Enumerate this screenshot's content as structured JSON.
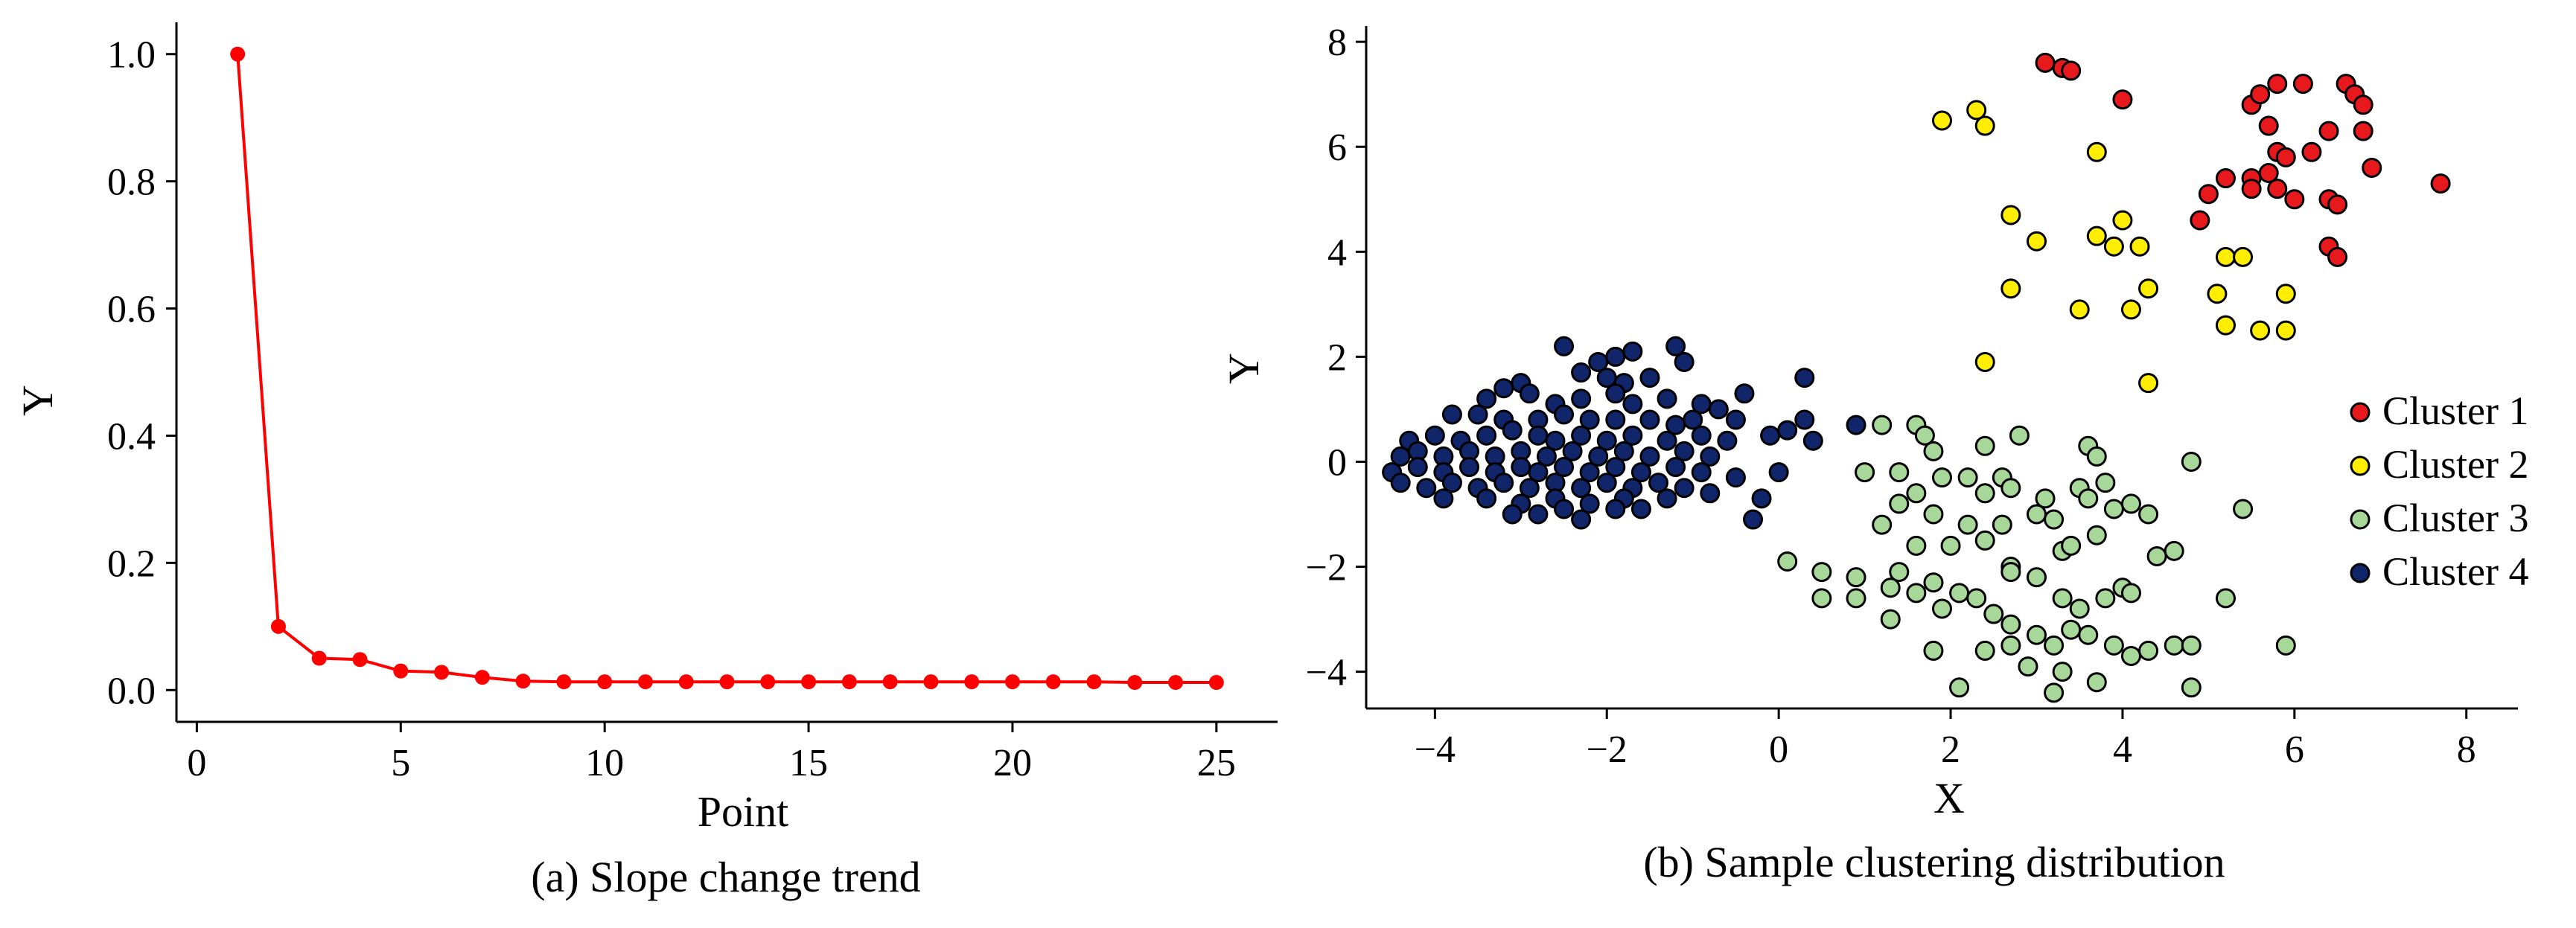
{
  "chart_data": [
    {
      "type": "line",
      "caption": "(a) Slope change trend",
      "xlabel": "Point",
      "ylabel": "Y",
      "xlim": [
        -0.5,
        26.5
      ],
      "ylim": [
        -0.05,
        1.05
      ],
      "xticks": [
        0,
        5,
        10,
        15,
        20,
        25
      ],
      "xtick_labels": [
        "0",
        "5",
        "10",
        "15",
        "20",
        "25"
      ],
      "yticks": [
        0.0,
        0.2,
        0.4,
        0.6,
        0.8,
        1.0
      ],
      "ytick_labels": [
        "0.0",
        "0.2",
        "0.4",
        "0.6",
        "0.8",
        "1.0"
      ],
      "grid": false,
      "color": "#ff0000",
      "x": [
        1,
        2,
        3,
        4,
        5,
        6,
        7,
        8,
        9,
        10,
        11,
        12,
        13,
        14,
        15,
        16,
        17,
        18,
        19,
        20,
        21,
        22,
        23,
        24,
        25
      ],
      "y": [
        1.0,
        0.1,
        0.05,
        0.048,
        0.03,
        0.028,
        0.02,
        0.014,
        0.013,
        0.013,
        0.013,
        0.013,
        0.013,
        0.013,
        0.013,
        0.013,
        0.013,
        0.013,
        0.013,
        0.013,
        0.013,
        0.013,
        0.012,
        0.012,
        0.012
      ]
    },
    {
      "type": "scatter",
      "caption": "(b) Sample clustering distribution",
      "xlabel": "X",
      "ylabel": "Y",
      "xlim": [
        -4.8,
        8.6
      ],
      "ylim": [
        -4.7,
        8.3
      ],
      "xticks": [
        -4,
        -2,
        0,
        2,
        4,
        6,
        8
      ],
      "xtick_labels": [
        "−4",
        "−2",
        "0",
        "2",
        "4",
        "6",
        "8"
      ],
      "yticks": [
        -4,
        -2,
        0,
        2,
        4,
        6,
        8
      ],
      "ytick_labels": [
        "−4",
        "−2",
        "0",
        "2",
        "4",
        "6",
        "8"
      ],
      "grid": false,
      "legend_position": "right",
      "series": [
        {
          "name": "Cluster 1",
          "color": "#e8191c",
          "points": [
            [
              3.1,
              7.6
            ],
            [
              3.3,
              7.5
            ],
            [
              3.4,
              7.45
            ],
            [
              4.0,
              6.9
            ],
            [
              5.5,
              6.8
            ],
            [
              5.6,
              7.0
            ],
            [
              5.8,
              7.2
            ],
            [
              6.1,
              7.2
            ],
            [
              6.6,
              7.2
            ],
            [
              6.7,
              7.0
            ],
            [
              6.8,
              6.8
            ],
            [
              5.7,
              6.4
            ],
            [
              6.4,
              6.3
            ],
            [
              6.8,
              6.3
            ],
            [
              5.8,
              5.9
            ],
            [
              5.9,
              5.8
            ],
            [
              6.2,
              5.9
            ],
            [
              6.9,
              5.6
            ],
            [
              5.2,
              5.4
            ],
            [
              5.5,
              5.4
            ],
            [
              5.7,
              5.5
            ],
            [
              5.5,
              5.2
            ],
            [
              5.8,
              5.2
            ],
            [
              5.0,
              5.1
            ],
            [
              6.0,
              5.0
            ],
            [
              6.4,
              5.0
            ],
            [
              6.5,
              4.9
            ],
            [
              4.9,
              4.6
            ],
            [
              6.4,
              4.1
            ],
            [
              6.5,
              3.9
            ],
            [
              7.7,
              5.3
            ]
          ]
        },
        {
          "name": "Cluster 2",
          "color": "#ffee00",
          "points": [
            [
              1.9,
              6.5
            ],
            [
              2.3,
              6.7
            ],
            [
              2.4,
              6.4
            ],
            [
              3.7,
              5.9
            ],
            [
              2.7,
              4.7
            ],
            [
              3.0,
              4.2
            ],
            [
              3.7,
              4.3
            ],
            [
              3.9,
              4.1
            ],
            [
              4.0,
              4.6
            ],
            [
              4.2,
              4.1
            ],
            [
              5.2,
              3.9
            ],
            [
              5.4,
              3.9
            ],
            [
              4.3,
              3.3
            ],
            [
              2.7,
              3.3
            ],
            [
              3.5,
              2.9
            ],
            [
              4.1,
              2.9
            ],
            [
              5.2,
              2.6
            ],
            [
              5.6,
              2.5
            ],
            [
              5.9,
              2.5
            ],
            [
              5.9,
              3.2
            ],
            [
              5.1,
              3.2
            ],
            [
              2.4,
              1.9
            ],
            [
              4.3,
              1.5
            ]
          ]
        },
        {
          "name": "Cluster 3",
          "color": "#a8d79a",
          "points": [
            [
              1.2,
              0.7
            ],
            [
              1.6,
              0.7
            ],
            [
              1.7,
              0.5
            ],
            [
              2.4,
              0.3
            ],
            [
              2.8,
              0.5
            ],
            [
              3.6,
              0.3
            ],
            [
              3.7,
              0.1
            ],
            [
              4.8,
              0.0
            ],
            [
              1.8,
              0.2
            ],
            [
              1.4,
              -0.2
            ],
            [
              1.9,
              -0.3
            ],
            [
              2.2,
              -0.3
            ],
            [
              2.6,
              -0.3
            ],
            [
              2.7,
              -0.5
            ],
            [
              3.1,
              -0.7
            ],
            [
              3.5,
              -0.5
            ],
            [
              3.8,
              -0.4
            ],
            [
              1.6,
              -0.6
            ],
            [
              1.0,
              -0.2
            ],
            [
              2.4,
              -0.6
            ],
            [
              3.0,
              -1.0
            ],
            [
              3.6,
              -0.7
            ],
            [
              3.9,
              -0.9
            ],
            [
              4.1,
              -0.8
            ],
            [
              1.4,
              -0.8
            ],
            [
              1.8,
              -1.0
            ],
            [
              2.2,
              -1.2
            ],
            [
              2.6,
              -1.2
            ],
            [
              3.2,
              -1.1
            ],
            [
              3.7,
              -1.4
            ],
            [
              4.3,
              -1.0
            ],
            [
              4.4,
              -1.8
            ],
            [
              4.6,
              -1.7
            ],
            [
              5.4,
              -0.9
            ],
            [
              1.2,
              -1.2
            ],
            [
              1.6,
              -1.6
            ],
            [
              2.0,
              -1.6
            ],
            [
              2.4,
              -1.5
            ],
            [
              2.7,
              -2.0
            ],
            [
              3.3,
              -1.7
            ],
            [
              3.4,
              -1.6
            ],
            [
              0.1,
              -1.9
            ],
            [
              0.5,
              -2.1
            ],
            [
              0.9,
              -2.2
            ],
            [
              1.4,
              -2.1
            ],
            [
              1.8,
              -2.3
            ],
            [
              2.1,
              -2.5
            ],
            [
              2.7,
              -2.1
            ],
            [
              3.0,
              -2.2
            ],
            [
              3.3,
              -2.6
            ],
            [
              3.5,
              -2.8
            ],
            [
              3.8,
              -2.6
            ],
            [
              4.0,
              -2.4
            ],
            [
              4.1,
              -2.5
            ],
            [
              5.2,
              -2.6
            ],
            [
              0.5,
              -2.6
            ],
            [
              0.9,
              -2.6
            ],
            [
              1.3,
              -2.4
            ],
            [
              1.6,
              -2.5
            ],
            [
              1.9,
              -2.8
            ],
            [
              2.3,
              -2.6
            ],
            [
              2.5,
              -2.9
            ],
            [
              2.7,
              -3.1
            ],
            [
              3.0,
              -3.3
            ],
            [
              3.2,
              -3.5
            ],
            [
              3.4,
              -3.2
            ],
            [
              3.6,
              -3.3
            ],
            [
              3.9,
              -3.5
            ],
            [
              4.1,
              -3.7
            ],
            [
              4.3,
              -3.6
            ],
            [
              4.6,
              -3.5
            ],
            [
              4.8,
              -3.5
            ],
            [
              5.9,
              -3.5
            ],
            [
              1.3,
              -3.0
            ],
            [
              1.8,
              -3.6
            ],
            [
              2.4,
              -3.6
            ],
            [
              2.7,
              -3.5
            ],
            [
              2.9,
              -3.9
            ],
            [
              3.3,
              -4.0
            ],
            [
              3.7,
              -4.2
            ],
            [
              4.8,
              -4.3
            ],
            [
              2.1,
              -4.3
            ],
            [
              3.2,
              -4.4
            ]
          ]
        },
        {
          "name": "Cluster 4",
          "color": "#10256a",
          "points": [
            [
              -2.5,
              2.2
            ],
            [
              -2.1,
              1.9
            ],
            [
              -1.9,
              2.0
            ],
            [
              -1.7,
              2.1
            ],
            [
              -1.2,
              2.2
            ],
            [
              -1.1,
              1.9
            ],
            [
              -2.3,
              1.7
            ],
            [
              -2.0,
              1.6
            ],
            [
              -1.8,
              1.5
            ],
            [
              -1.5,
              1.6
            ],
            [
              -3.0,
              1.5
            ],
            [
              -3.2,
              1.4
            ],
            [
              -2.9,
              1.3
            ],
            [
              -3.4,
              1.2
            ],
            [
              -2.6,
              1.1
            ],
            [
              -2.3,
              1.2
            ],
            [
              -1.9,
              1.3
            ],
            [
              -1.7,
              1.1
            ],
            [
              -1.3,
              1.2
            ],
            [
              -0.9,
              1.1
            ],
            [
              -0.7,
              1.0
            ],
            [
              -0.4,
              1.3
            ],
            [
              0.3,
              1.6
            ],
            [
              -3.8,
              0.9
            ],
            [
              -3.5,
              0.9
            ],
            [
              -3.2,
              0.8
            ],
            [
              -2.8,
              0.8
            ],
            [
              -2.5,
              0.9
            ],
            [
              -2.2,
              0.8
            ],
            [
              -1.9,
              0.8
            ],
            [
              -1.5,
              0.8
            ],
            [
              -1.2,
              0.7
            ],
            [
              -1.0,
              0.8
            ],
            [
              -0.5,
              0.8
            ],
            [
              -0.1,
              0.5
            ],
            [
              0.1,
              0.6
            ],
            [
              0.3,
              0.8
            ],
            [
              0.9,
              0.7
            ],
            [
              -4.3,
              0.4
            ],
            [
              -4.0,
              0.5
            ],
            [
              -3.7,
              0.4
            ],
            [
              -3.4,
              0.5
            ],
            [
              -3.1,
              0.6
            ],
            [
              -2.8,
              0.5
            ],
            [
              -2.6,
              0.4
            ],
            [
              -2.3,
              0.5
            ],
            [
              -2.0,
              0.4
            ],
            [
              -1.7,
              0.5
            ],
            [
              -1.3,
              0.4
            ],
            [
              -0.9,
              0.5
            ],
            [
              -0.6,
              0.4
            ],
            [
              0.4,
              0.4
            ],
            [
              -4.4,
              0.1
            ],
            [
              -4.2,
              0.2
            ],
            [
              -3.9,
              0.1
            ],
            [
              -3.6,
              0.2
            ],
            [
              -3.3,
              0.1
            ],
            [
              -3.0,
              0.2
            ],
            [
              -2.7,
              0.1
            ],
            [
              -2.4,
              0.2
            ],
            [
              -2.1,
              0.1
            ],
            [
              -1.8,
              0.2
            ],
            [
              -1.5,
              0.1
            ],
            [
              -1.1,
              0.2
            ],
            [
              -0.8,
              0.1
            ],
            [
              -4.5,
              -0.2
            ],
            [
              -4.2,
              -0.1
            ],
            [
              -3.9,
              -0.2
            ],
            [
              -3.6,
              -0.1
            ],
            [
              -3.3,
              -0.2
            ],
            [
              -3.0,
              -0.1
            ],
            [
              -2.8,
              -0.2
            ],
            [
              -2.5,
              -0.1
            ],
            [
              -2.2,
              -0.2
            ],
            [
              -1.9,
              -0.1
            ],
            [
              -1.6,
              -0.2
            ],
            [
              -1.2,
              -0.1
            ],
            [
              -0.9,
              -0.2
            ],
            [
              -0.5,
              -0.3
            ],
            [
              0.0,
              -0.2
            ],
            [
              -4.4,
              -0.4
            ],
            [
              -4.1,
              -0.5
            ],
            [
              -3.8,
              -0.4
            ],
            [
              -3.5,
              -0.5
            ],
            [
              -3.2,
              -0.4
            ],
            [
              -2.9,
              -0.5
            ],
            [
              -2.6,
              -0.4
            ],
            [
              -2.3,
              -0.5
            ],
            [
              -2.0,
              -0.4
            ],
            [
              -1.7,
              -0.5
            ],
            [
              -1.4,
              -0.4
            ],
            [
              -1.1,
              -0.5
            ],
            [
              -3.9,
              -0.7
            ],
            [
              -3.4,
              -0.7
            ],
            [
              -3.0,
              -0.8
            ],
            [
              -2.6,
              -0.7
            ],
            [
              -2.2,
              -0.8
            ],
            [
              -1.8,
              -0.7
            ],
            [
              -1.3,
              -0.7
            ],
            [
              -0.8,
              -0.6
            ],
            [
              -0.2,
              -0.7
            ],
            [
              -3.1,
              -1.0
            ],
            [
              -2.8,
              -1.0
            ],
            [
              -2.5,
              -0.9
            ],
            [
              -2.3,
              -1.1
            ],
            [
              -1.9,
              -0.9
            ],
            [
              -1.6,
              -0.9
            ],
            [
              -0.3,
              -1.1
            ]
          ]
        }
      ]
    }
  ]
}
